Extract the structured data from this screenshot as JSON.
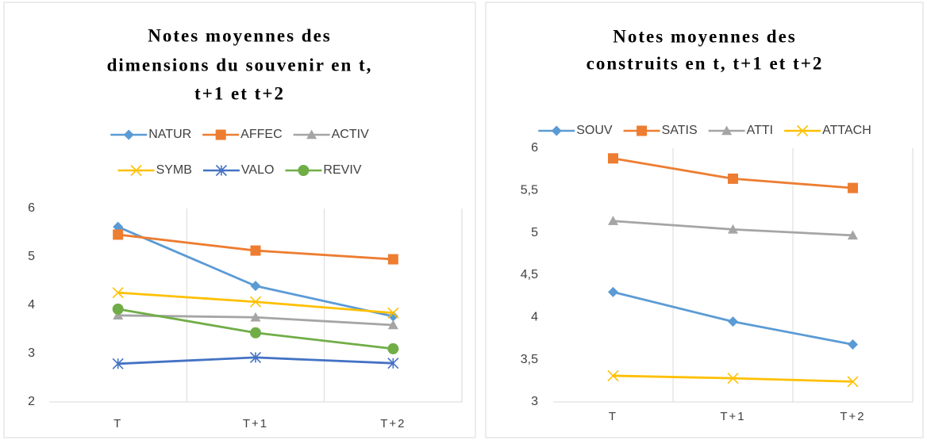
{
  "chart_data": [
    {
      "type": "line",
      "title": [
        "Notes moyennes des",
        "dimensions du souvenir en t,",
        "t+1 et t+2"
      ],
      "categories": [
        "T",
        "T+1",
        "T+2"
      ],
      "ylim": [
        2,
        6
      ],
      "yticks": [
        2,
        3,
        4,
        5,
        6
      ],
      "grid": "vertical",
      "series": [
        {
          "name": "NATUR",
          "color": "#5b9bd5",
          "marker": "diamond",
          "values": [
            5.62,
            4.4,
            3.77
          ]
        },
        {
          "name": "AFFEC",
          "color": "#ed7d31",
          "marker": "square",
          "values": [
            5.46,
            5.13,
            4.95
          ]
        },
        {
          "name": "ACTIV",
          "color": "#a5a5a5",
          "marker": "triangle",
          "values": [
            3.79,
            3.75,
            3.59
          ]
        },
        {
          "name": "SYMB",
          "color": "#ffc000",
          "marker": "x",
          "values": [
            4.26,
            4.07,
            3.84
          ]
        },
        {
          "name": "VALO",
          "color": "#4472c4",
          "marker": "star",
          "values": [
            2.79,
            2.92,
            2.8
          ]
        },
        {
          "name": "REVIV",
          "color": "#70ad47",
          "marker": "circle",
          "values": [
            3.92,
            3.43,
            3.1
          ]
        }
      ]
    },
    {
      "type": "line",
      "title": [
        "Notes moyennes des",
        "construits en t, t+1 et t+2"
      ],
      "categories": [
        "T",
        "T+1",
        "T+2"
      ],
      "ylim": [
        3,
        6
      ],
      "yticks": [
        3,
        {
          "value": 3.5,
          "label": "3,5"
        },
        4,
        {
          "value": 4.5,
          "label": "4,5"
        },
        5,
        {
          "value": 5.5,
          "label": "5,5"
        },
        6
      ],
      "grid": "vertical",
      "series": [
        {
          "name": "SOUV",
          "color": "#5b9bd5",
          "marker": "diamond",
          "values": [
            4.3,
            3.95,
            3.68
          ]
        },
        {
          "name": "SATIS",
          "color": "#ed7d31",
          "marker": "square",
          "values": [
            5.88,
            5.64,
            5.53
          ]
        },
        {
          "name": "ATTI",
          "color": "#a5a5a5",
          "marker": "triangle",
          "values": [
            5.14,
            5.04,
            4.97
          ]
        },
        {
          "name": "ATTACH",
          "color": "#ffc000",
          "marker": "x",
          "values": [
            3.31,
            3.28,
            3.24
          ]
        }
      ]
    }
  ]
}
